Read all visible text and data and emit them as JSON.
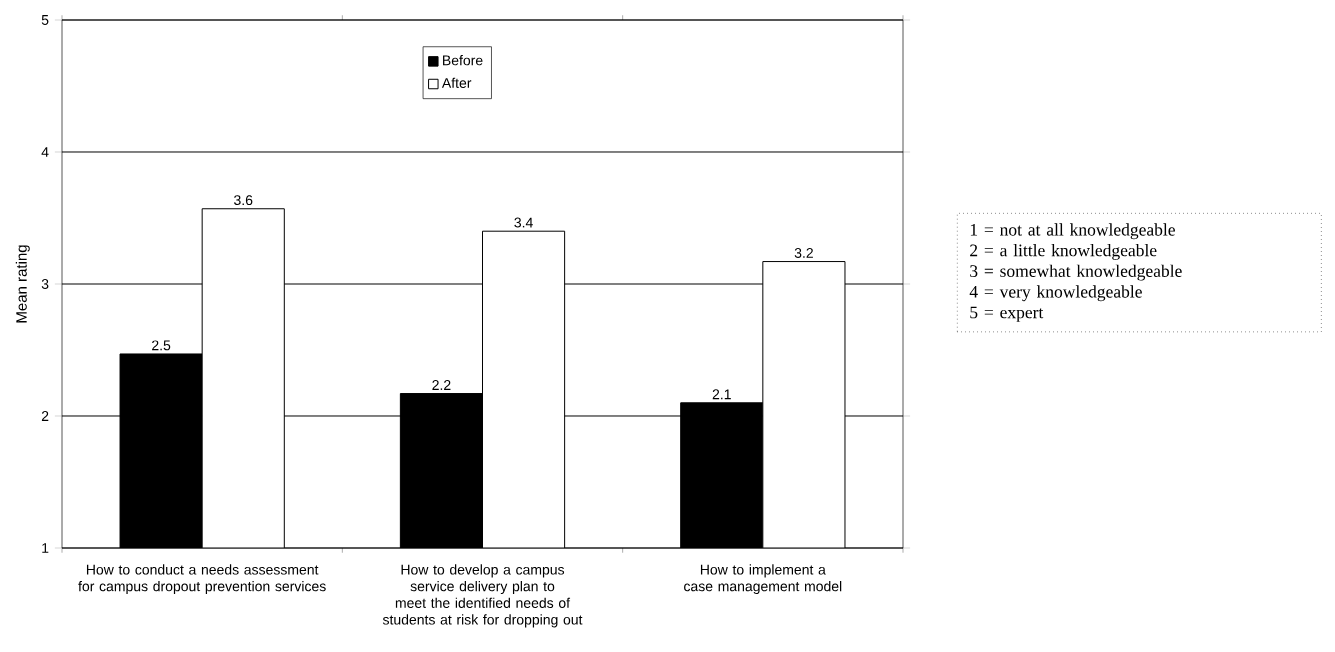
{
  "chart_data": {
    "type": "bar",
    "ylabel": "Mean rating",
    "categories": [
      "How to conduct a needs assessment for campus dropout prevention services",
      "How to develop a campus service delivery plan to meet the identified needs of students at risk for dropping out",
      "How to implement a case management model"
    ],
    "series": [
      {
        "name": "Before",
        "color": "#000000",
        "values": [
          2.47,
          2.17,
          2.1
        ],
        "value_labels": [
          "2.5",
          "2.2",
          "2.1"
        ]
      },
      {
        "name": "After",
        "color": "#ffffff",
        "values": [
          3.57,
          3.4,
          3.17
        ],
        "value_labels": [
          "3.6",
          "3.4",
          "3.2"
        ]
      }
    ],
    "ylim": [
      1,
      5
    ],
    "yticks": [
      1,
      2,
      3,
      4,
      5
    ],
    "grid": "y",
    "legend": "top",
    "annotations": [
      "1 = not at all knowledgeable",
      "2 = a little knowledgeable",
      "3 = somewhat knowledgeable",
      "4 = very knowledgeable",
      "5 = expert"
    ]
  }
}
